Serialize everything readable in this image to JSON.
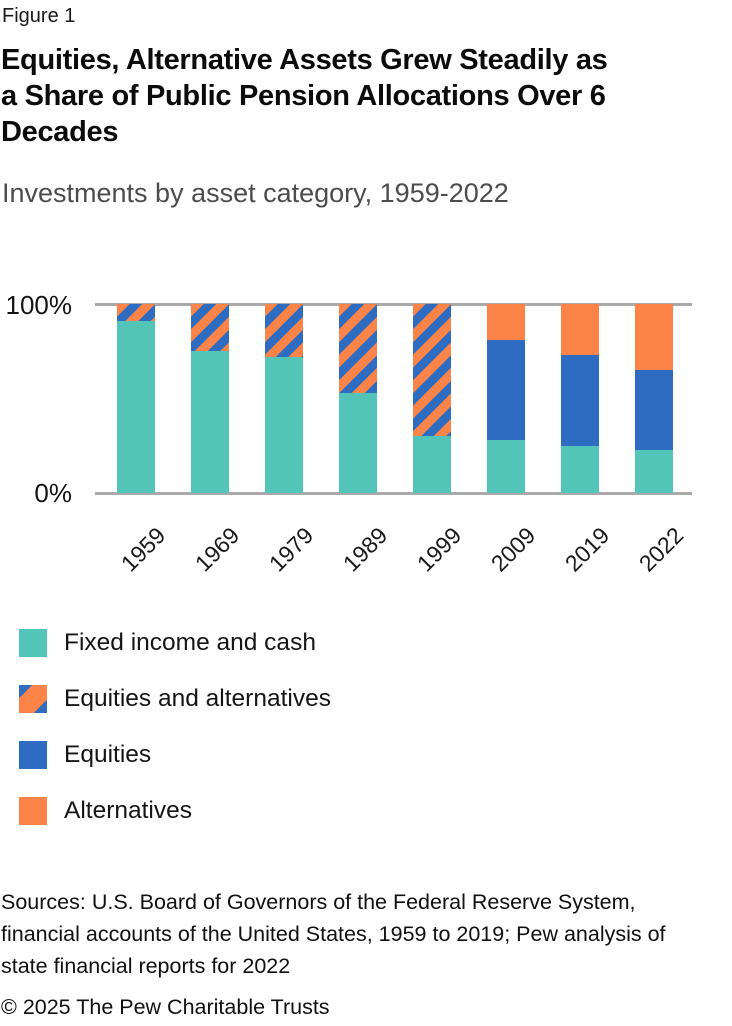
{
  "figure": {
    "label": "Figure 1",
    "title": "Equities, Alternative Assets Grew Steadily as a Share of Public Pension Allocations Over 6 Decades",
    "title_lines": [
      "Equities, Alternative Assets Grew Steadily as",
      "a Share of Public Pension Allocations Over 6",
      "Decades"
    ],
    "subtitle": "Investments by asset category, 1959-2022"
  },
  "chart_data": {
    "type": "bar",
    "stacked": true,
    "unit": "percent",
    "title": "Investments by asset category, 1959-2022",
    "categories": [
      "1959",
      "1969",
      "1979",
      "1989",
      "1999",
      "2009",
      "2019",
      "2022"
    ],
    "series": [
      {
        "name": "Fixed income and cash",
        "style": "solid",
        "color": "#52c4b8",
        "values": [
          91,
          75,
          72,
          53,
          30,
          28,
          25,
          23
        ]
      },
      {
        "name": "Equities and alternatives",
        "style": "striped",
        "stripe_colors": [
          "#fc8448",
          "#2d6cc0"
        ],
        "values": [
          9,
          25,
          28,
          47,
          70,
          0,
          0,
          0
        ]
      },
      {
        "name": "Equities",
        "style": "solid",
        "color": "#2d6cc0",
        "values": [
          0,
          0,
          0,
          0,
          0,
          53,
          48,
          42
        ]
      },
      {
        "name": "Alternatives",
        "style": "solid",
        "color": "#fc8448",
        "values": [
          0,
          0,
          0,
          0,
          0,
          19,
          27,
          35
        ]
      }
    ],
    "y_axis": {
      "min_label": "0%",
      "max_label": "100%",
      "range": [
        0,
        100
      ],
      "gridlines_at": [
        0,
        100
      ]
    },
    "legend_position": "bottom-left",
    "gridline_color": "#a9a9a9"
  },
  "legend": {
    "items": [
      {
        "label": "Fixed income and cash",
        "swatch": "solid",
        "color": "#52c4b8"
      },
      {
        "label": "Equities and alternatives",
        "swatch": "striped",
        "stripe_colors": [
          "#2d6cc0",
          "#fc8448"
        ]
      },
      {
        "label": "Equities",
        "swatch": "solid",
        "color": "#2d6cc0"
      },
      {
        "label": "Alternatives",
        "swatch": "solid",
        "color": "#fc8448"
      }
    ]
  },
  "footer": {
    "sources": "Sources: U.S. Board of Governors of the Federal Reserve System, financial accounts of the United States, 1959 to 2019; Pew analysis of state financial reports for 2022",
    "sources_lines": [
      "Sources: U.S. Board of Governors of the Federal Reserve System,",
      "financial accounts of the United States, 1959 to 2019; Pew analysis of",
      "state financial reports for 2022"
    ],
    "copyright": "© 2025 The Pew Charitable Trusts"
  }
}
